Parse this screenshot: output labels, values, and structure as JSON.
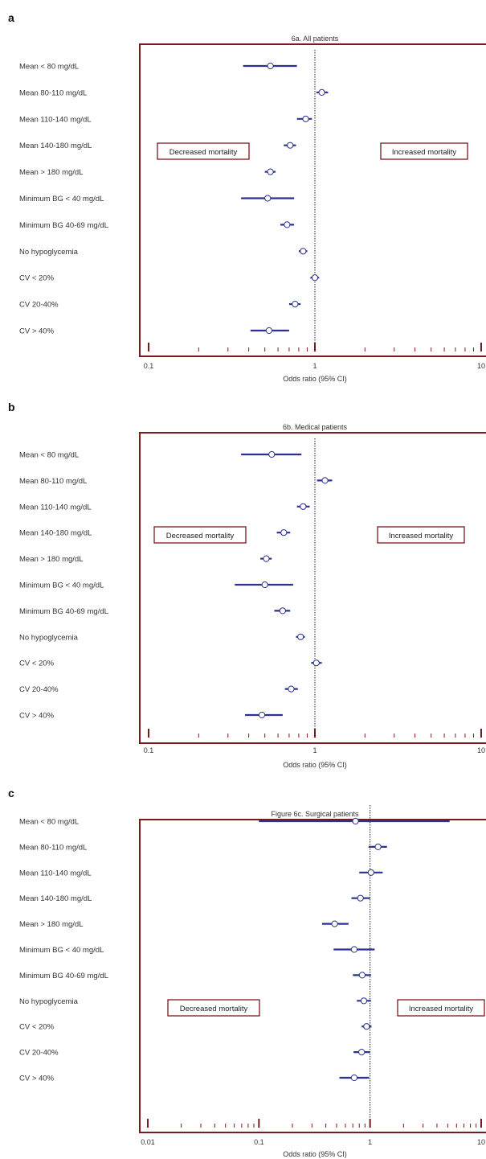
{
  "colors": {
    "frame": "#7a1a1a",
    "ci": "#2b3190",
    "marker_fill": "#ffffff",
    "marker_stroke": "#2b3190",
    "refline": "#222222"
  },
  "chart_data": [
    {
      "type": "forest",
      "panel_letter": "a",
      "title": "6a. All patients",
      "xlabel": "Odds ratio (95% CI)",
      "xscale": "log",
      "xlim": [
        0.1,
        10
      ],
      "ticks": [
        "0.1",
        "1",
        "10"
      ],
      "reference_line": 1,
      "annotations": {
        "left": "Decreased mortality",
        "right": "Increased mortality"
      },
      "rows": [
        {
          "label": "Mean < 80 mg/dL",
          "or": 0.54,
          "lo": 0.37,
          "hi": 0.78
        },
        {
          "label": "Mean 80-110 mg/dL",
          "or": 1.1,
          "lo": 1.02,
          "hi": 1.2
        },
        {
          "label": "Mean 110-140 mg/dL",
          "or": 0.88,
          "lo": 0.78,
          "hi": 0.96
        },
        {
          "label": "Mean 140-180 mg/dL",
          "or": 0.71,
          "lo": 0.65,
          "hi": 0.77
        },
        {
          "label": "Mean > 180 mg/dL",
          "or": 0.54,
          "lo": 0.5,
          "hi": 0.58
        },
        {
          "label": "Minimum BG < 40 mg/dL",
          "or": 0.52,
          "lo": 0.36,
          "hi": 0.75
        },
        {
          "label": "Minimum BG 40-69 mg/dL",
          "or": 0.68,
          "lo": 0.62,
          "hi": 0.75
        },
        {
          "label": "No hypoglycemia",
          "or": 0.85,
          "lo": 0.8,
          "hi": 0.9
        },
        {
          "label": "CV < 20%",
          "or": 1.0,
          "lo": 0.94,
          "hi": 1.06
        },
        {
          "label": "CV 20-40%",
          "or": 0.76,
          "lo": 0.7,
          "hi": 0.82
        },
        {
          "label": "CV > 40%",
          "or": 0.53,
          "lo": 0.41,
          "hi": 0.7
        }
      ]
    },
    {
      "type": "forest",
      "panel_letter": "b",
      "title": "6b. Medical patients",
      "xlabel": "Odds ratio (95% CI)",
      "xscale": "log",
      "xlim": [
        0.1,
        10
      ],
      "ticks": [
        "0.1",
        "1",
        "10"
      ],
      "reference_line": 1,
      "annotations": {
        "left": "Decreased mortality",
        "right": "Increased mortality"
      },
      "rows": [
        {
          "label": "Mean < 80 mg/dL",
          "or": 0.55,
          "lo": 0.36,
          "hi": 0.83
        },
        {
          "label": "Mean 80-110 mg/dL",
          "or": 1.15,
          "lo": 1.03,
          "hi": 1.27
        },
        {
          "label": "Mean 110-140 mg/dL",
          "or": 0.85,
          "lo": 0.78,
          "hi": 0.93
        },
        {
          "label": "Mean 140-180 mg/dL",
          "or": 0.65,
          "lo": 0.59,
          "hi": 0.71
        },
        {
          "label": "Mean > 180 mg/dL",
          "or": 0.51,
          "lo": 0.47,
          "hi": 0.55
        },
        {
          "label": "Minimum BG < 40 mg/dL",
          "or": 0.5,
          "lo": 0.33,
          "hi": 0.74
        },
        {
          "label": "Minimum BG 40-69 mg/dL",
          "or": 0.64,
          "lo": 0.57,
          "hi": 0.71
        },
        {
          "label": "No hypoglycemia",
          "or": 0.82,
          "lo": 0.77,
          "hi": 0.87
        },
        {
          "label": "CV < 20%",
          "or": 1.02,
          "lo": 0.95,
          "hi": 1.1
        },
        {
          "label": "CV 20-40%",
          "or": 0.72,
          "lo": 0.66,
          "hi": 0.79
        },
        {
          "label": "CV > 40%",
          "or": 0.48,
          "lo": 0.38,
          "hi": 0.64
        }
      ]
    },
    {
      "type": "forest",
      "panel_letter": "c",
      "title": "Figure 6c. Surgical patients",
      "xlabel": "Odds ratio (95% CI)",
      "xscale": "log",
      "xlim": [
        0.01,
        10
      ],
      "ticks": [
        "0.01",
        "0.1",
        "1",
        "10"
      ],
      "reference_line": 1,
      "annotations": {
        "left": "Decreased mortality",
        "right": "Increased mortality"
      },
      "rows": [
        {
          "label": "Mean < 80 mg/dL",
          "or": 0.74,
          "lo": 0.1,
          "hi": 5.2
        },
        {
          "label": "Mean 80-110 mg/dL",
          "or": 1.18,
          "lo": 0.97,
          "hi": 1.42
        },
        {
          "label": "Mean 110-140 mg/dL",
          "or": 1.02,
          "lo": 0.8,
          "hi": 1.3
        },
        {
          "label": "Mean 140-180 mg/dL",
          "or": 0.82,
          "lo": 0.68,
          "hi": 1.0
        },
        {
          "label": "Mean > 180 mg/dL",
          "or": 0.48,
          "lo": 0.37,
          "hi": 0.64
        },
        {
          "label": "Minimum BG < 40 mg/dL",
          "or": 0.72,
          "lo": 0.47,
          "hi": 1.1
        },
        {
          "label": "Minimum BG 40-69 mg/dL",
          "or": 0.85,
          "lo": 0.7,
          "hi": 1.02
        },
        {
          "label": "No hypoglycemia",
          "or": 0.88,
          "lo": 0.76,
          "hi": 1.02
        },
        {
          "label": "CV < 20%",
          "or": 0.93,
          "lo": 0.84,
          "hi": 1.03
        },
        {
          "label": "CV 20-40%",
          "or": 0.84,
          "lo": 0.71,
          "hi": 1.0
        },
        {
          "label": "CV > 40%",
          "or": 0.72,
          "lo": 0.53,
          "hi": 0.98
        }
      ]
    }
  ]
}
